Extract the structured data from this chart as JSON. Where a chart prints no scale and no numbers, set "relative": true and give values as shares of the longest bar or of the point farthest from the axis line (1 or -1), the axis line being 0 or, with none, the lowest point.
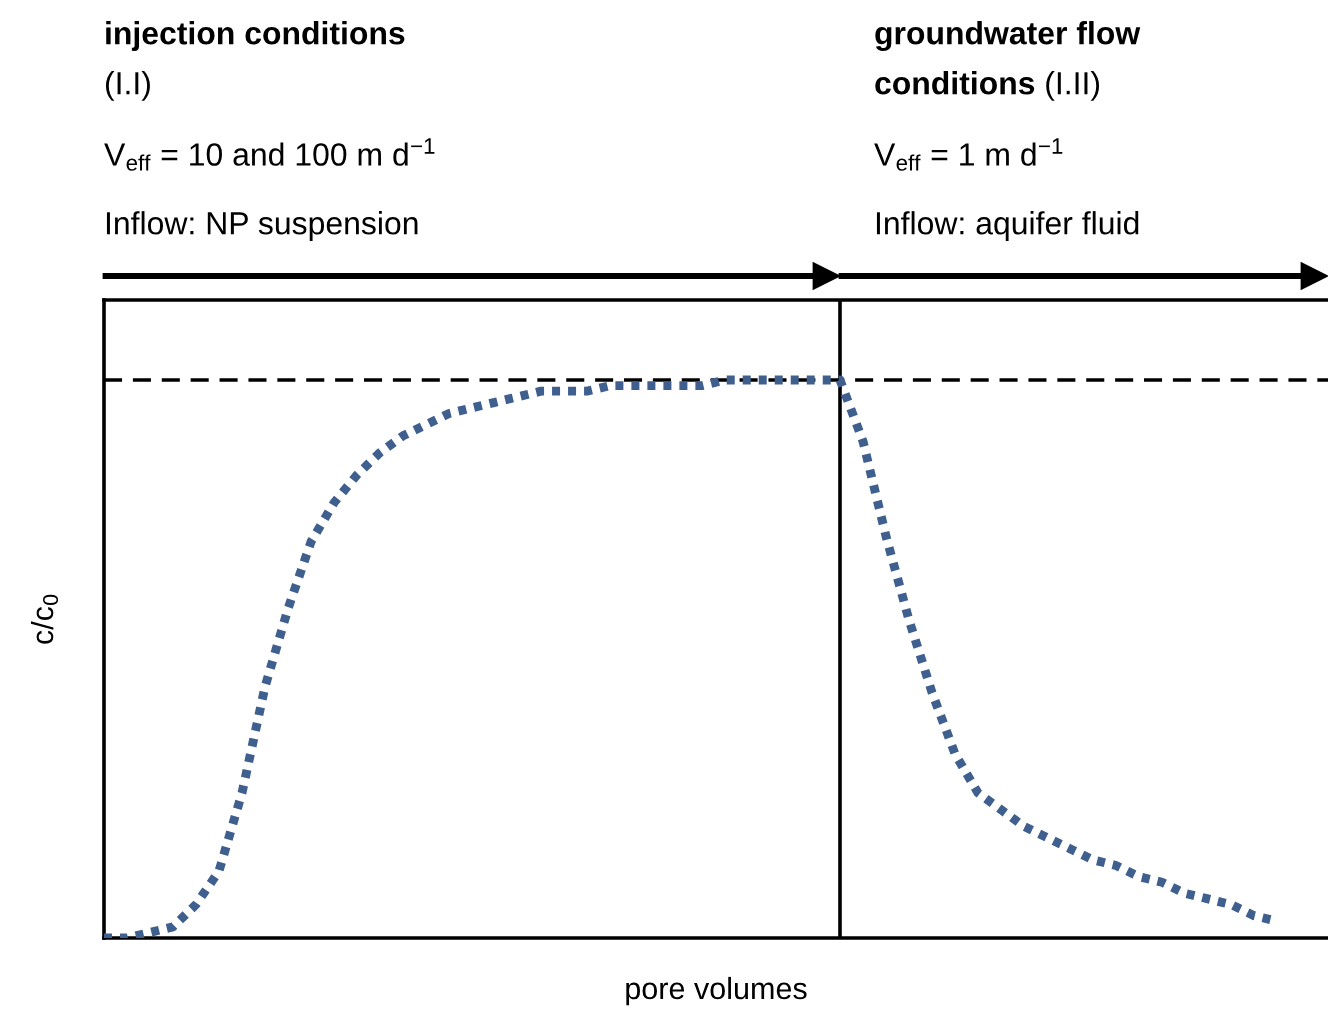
{
  "chart_data": {
    "type": "line",
    "relative": true,
    "xlabel": "pore volumes",
    "ylabel": "c/c$_{0}$",
    "categories": [
      null,
      null,
      null,
      null,
      null,
      null,
      null,
      null,
      null,
      null,
      null,
      null,
      null,
      null,
      null,
      null,
      null,
      null,
      null,
      null,
      null,
      null,
      null,
      null,
      null,
      null,
      null,
      null,
      null,
      null,
      null,
      null,
      null,
      null,
      null,
      null,
      null,
      null,
      null,
      null,
      null,
      null,
      null,
      null,
      null,
      null,
      null,
      null,
      null,
      null,
      null,
      null
    ],
    "series": [
      {
        "color": "#3f5f8f",
        "values": [
          0,
          0.0,
          0.01,
          0.02,
          0.06,
          0.12,
          0.26,
          0.45,
          0.59,
          0.71,
          0.78,
          0.83,
          0.87,
          0.9,
          0.92,
          0.94,
          0.95,
          0.96,
          0.97,
          0.98,
          0.98,
          0.98,
          0.99,
          0.99,
          0.99,
          0.99,
          0.99,
          1.0,
          1.0,
          1.0,
          1.0,
          1.0,
          1.0,
          0.89,
          0.72,
          0.57,
          0.44,
          0.33,
          0.26,
          0.23,
          0.2,
          0.18,
          0.16,
          0.14,
          0.13,
          0.11,
          0.1,
          0.08,
          0.07,
          0.06,
          0.04,
          0.03
        ]
      }
    ],
    "line_style": "dotted",
    "marker": "none",
    "legend": false,
    "ref_lines": [
      {
        "axis": "y",
        "value": 1,
        "color": "#000000",
        "line_style": "dashed"
      }
    ],
    "annotations": [
      "injection conditions",
      "(I.I)",
      "V$_{eff}$ = 10 and 100 m d$^{−1}$",
      "Inflow: NP suspension",
      "groundwater flow",
      "conditions",
      "(I.II)",
      "V$_{eff}$ = 1 m d$^{−1}$",
      "Inflow: aquifer fluid"
    ]
  }
}
